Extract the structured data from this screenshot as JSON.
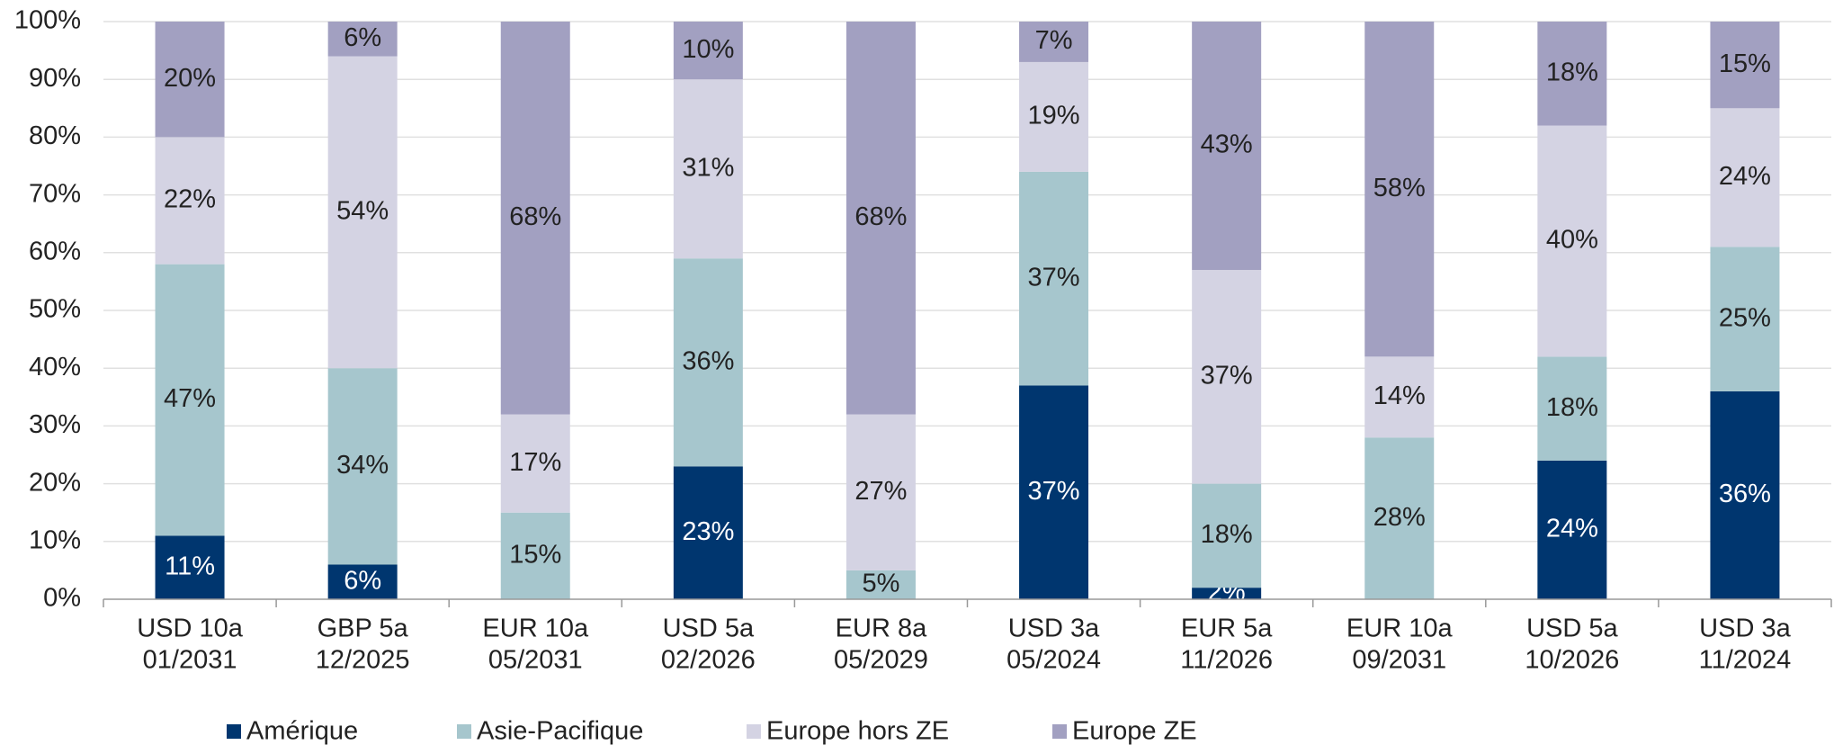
{
  "chart_data": {
    "type": "stacked-bar",
    "categories": [
      [
        "USD 10a",
        "01/2031"
      ],
      [
        "GBP 5a",
        "12/2025"
      ],
      [
        "EUR 10a",
        "05/2031"
      ],
      [
        "USD 5a",
        "02/2026"
      ],
      [
        "EUR 8a",
        "05/2029"
      ],
      [
        "USD 3a",
        "05/2024"
      ],
      [
        "EUR 5a",
        "11/2026"
      ],
      [
        "EUR 10a",
        "09/2031"
      ],
      [
        "USD 5a",
        "10/2026"
      ],
      [
        "USD 3a",
        "11/2024"
      ]
    ],
    "series": [
      {
        "name": "Amérique",
        "color": "#00366f",
        "values": [
          11,
          6,
          0,
          23,
          0,
          37,
          2,
          0,
          24,
          36
        ],
        "value_labels": [
          "11%",
          "6%",
          null,
          "23%",
          null,
          "37%",
          "2%",
          null,
          "24%",
          "36%"
        ]
      },
      {
        "name": "Asie-Pacifique",
        "color": "#a6c6cd",
        "values": [
          47,
          34,
          15,
          36,
          5,
          37,
          18,
          28,
          18,
          25
        ],
        "value_labels": [
          "47%",
          "34%",
          "15%",
          "36%",
          "5%",
          "37%",
          "18%",
          "28%",
          "18%",
          "25%"
        ]
      },
      {
        "name": "Europe hors ZE",
        "color": "#d4d3e3",
        "values": [
          22,
          54,
          17,
          31,
          27,
          19,
          37,
          14,
          40,
          24
        ],
        "value_labels": [
          "22%",
          "54%",
          "17%",
          "31%",
          "27%",
          "19%",
          "37%",
          "14%",
          "40%",
          "24%"
        ]
      },
      {
        "name": "Europe ZE",
        "color": "#a2a0c1",
        "values": [
          20,
          6,
          68,
          10,
          68,
          7,
          43,
          58,
          18,
          15
        ],
        "value_labels": [
          "20%",
          "6%",
          "68%",
          "10%",
          "68%",
          "7%",
          "43%",
          "58%",
          "18%",
          "15%"
        ]
      }
    ],
    "ylim": [
      0,
      100
    ],
    "yticks": [
      {
        "value": 0,
        "label": "0%"
      },
      {
        "value": 10,
        "label": "10%"
      },
      {
        "value": 20,
        "label": "20%"
      },
      {
        "value": 30,
        "label": "30%"
      },
      {
        "value": 40,
        "label": "40%"
      },
      {
        "value": 50,
        "label": "50%"
      },
      {
        "value": 60,
        "label": "60%"
      },
      {
        "value": 70,
        "label": "70%"
      },
      {
        "value": 80,
        "label": "80%"
      },
      {
        "value": 90,
        "label": "90%"
      },
      {
        "value": 100,
        "label": "100%"
      }
    ],
    "grid": true,
    "legend": "bottom"
  }
}
